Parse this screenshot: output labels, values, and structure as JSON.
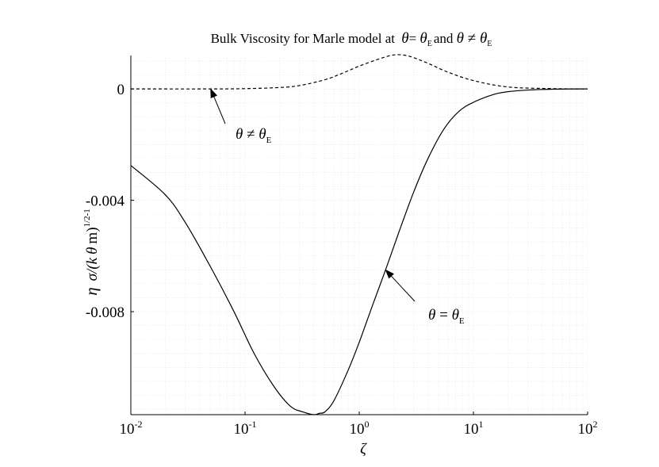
{
  "chart_data": {
    "type": "line",
    "title": "Bulk Viscosity for Marle model at  θ= θE and θ ≠ θE",
    "title_parts": {
      "prefix": "Bulk Viscosity for Marle model at ",
      "theta": "θ",
      "eq": "= ",
      "sub": "E",
      "mid": "and ",
      "neq": " ≠ "
    },
    "xlabel": "ζ",
    "ylabel": {
      "eta": "η",
      "sigma": "σ/(k",
      "theta": "θ",
      "m": "m)",
      "sup": "1/2",
      "power": "-1"
    },
    "x_scale": "log",
    "xlim": [
      0.01,
      100
    ],
    "ylim": [
      -0.0117,
      0.0012
    ],
    "grid": true,
    "x_ticks": [
      {
        "value": 0.01,
        "base": "10",
        "exp": "-2"
      },
      {
        "value": 0.1,
        "base": "10",
        "exp": "-1"
      },
      {
        "value": 1,
        "base": "10",
        "exp": "0"
      },
      {
        "value": 10,
        "base": "10",
        "exp": "1"
      },
      {
        "value": 100,
        "base": "10",
        "exp": "2"
      }
    ],
    "y_ticks": [
      {
        "value": 0,
        "label": "0"
      },
      {
        "value": -0.004,
        "label": "-0.004"
      },
      {
        "value": -0.008,
        "label": "-0.008"
      }
    ],
    "series": [
      {
        "style": "solid",
        "color": "#000000",
        "x": [
          0.01,
          0.02,
          0.03,
          0.05,
          0.08,
          0.12,
          0.18,
          0.25,
          0.32,
          0.4,
          0.45,
          0.5,
          0.6,
          0.8,
          1.0,
          1.3,
          1.7,
          2.2,
          3.0,
          4.0,
          5.5,
          7.5,
          10,
          15,
          20,
          30,
          50,
          100
        ],
        "y": [
          -0.00275,
          -0.0038,
          -0.0048,
          -0.0064,
          -0.008,
          -0.0095,
          -0.0107,
          -0.0114,
          -0.0116,
          -0.0117,
          -0.01165,
          -0.0116,
          -0.0112,
          -0.0101,
          -0.0091,
          -0.0078,
          -0.0065,
          -0.0052,
          -0.0037,
          -0.0025,
          -0.00145,
          -0.0008,
          -0.00048,
          -0.0002,
          -0.0001,
          -4e-05,
          -1e-05,
          0.0
        ]
      },
      {
        "style": "dashed",
        "color": "#000000",
        "x": [
          0.01,
          0.05,
          0.1,
          0.2,
          0.3,
          0.5,
          0.7,
          1.0,
          1.5,
          2.0,
          2.5,
          3.0,
          4.0,
          6.0,
          10,
          20,
          50,
          100
        ],
        "y": [
          0.0,
          0.0,
          1e-05,
          5e-05,
          0.00012,
          0.00033,
          0.00055,
          0.00082,
          0.00108,
          0.00122,
          0.00121,
          0.00112,
          0.00092,
          0.0006,
          0.0003,
          7e-05,
          1e-05,
          0.0
        ]
      }
    ],
    "annotations": [
      {
        "theta": "θ",
        "op": " ≠ ",
        "sub": "E",
        "x": 0.05,
        "y": 0.0
      },
      {
        "theta": "θ",
        "op": " = ",
        "sub": "E",
        "x": 1.7,
        "y": -0.0065
      }
    ]
  }
}
